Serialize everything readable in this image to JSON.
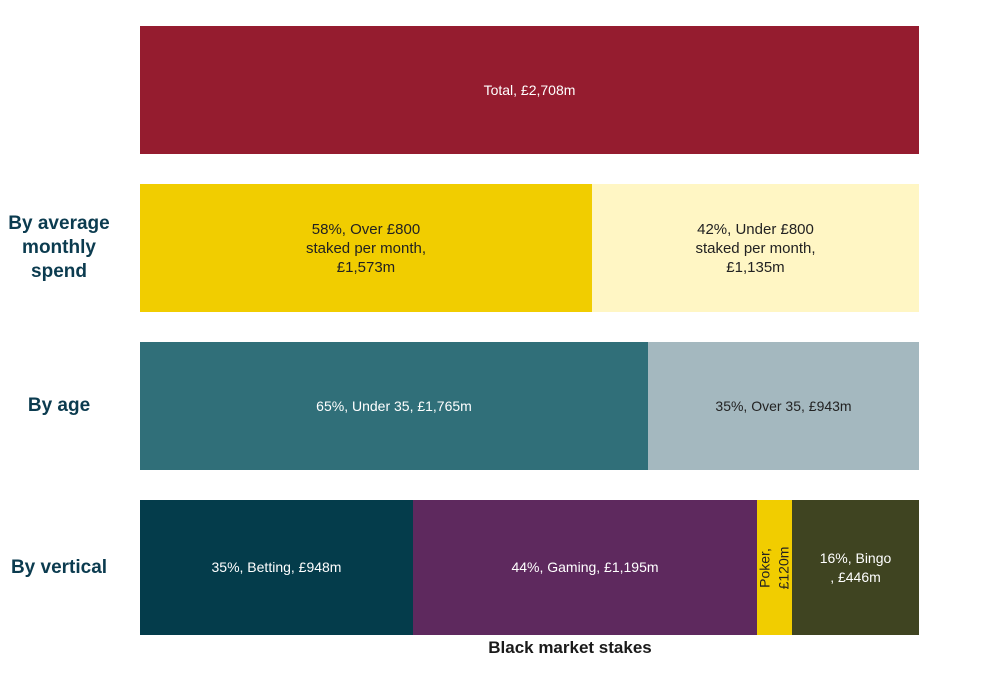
{
  "chart_data": {
    "type": "bar",
    "orientation": "horizontal",
    "stacked": true,
    "xlabel": "Black market stakes",
    "unit": "£m",
    "rows": [
      {
        "label": "",
        "segments": [
          {
            "label": "Total, £2,708m",
            "value": 2708,
            "share": 100,
            "color": "#951c2f",
            "text_color": "#ffffff"
          }
        ]
      },
      {
        "label": "By average monthly spend",
        "segments": [
          {
            "label": "58%, Over £800\nstaked per month,\n£1,573m",
            "value": 1573,
            "share": 58,
            "color": "#f1cd00",
            "text_color": "#222222"
          },
          {
            "label": "42%, Under £800\nstaked per month,\n£1,135m",
            "value": 1135,
            "share": 42,
            "color": "#fff6c4",
            "text_color": "#222222"
          }
        ]
      },
      {
        "label": "By age",
        "segments": [
          {
            "label": "65%, Under 35, £1,765m",
            "value": 1765,
            "share": 65,
            "color": "#306f79",
            "text_color": "#ffffff"
          },
          {
            "label": "35%, Over 35, £943m",
            "value": 943,
            "share": 35,
            "color": "#a4b8bf",
            "text_color": "#222222"
          }
        ]
      },
      {
        "label": "By vertical",
        "segments": [
          {
            "label": "35%, Betting, £948m",
            "value": 948,
            "share": 35,
            "color": "#043c4b",
            "text_color": "#ffffff"
          },
          {
            "label": "44%, Gaming, £1,195m",
            "value": 1195,
            "share": 44,
            "color": "#5e295e",
            "text_color": "#ffffff"
          },
          {
            "label": "Poker,\n£120m",
            "value": 120,
            "share": 4,
            "color": "#f1cd00",
            "text_color": "#222222",
            "rotated": true
          },
          {
            "label": "16%, Bingo\n, £446m",
            "value": 446,
            "share": 16,
            "color": "#3f4421",
            "text_color": "#ffffff"
          }
        ]
      }
    ]
  }
}
